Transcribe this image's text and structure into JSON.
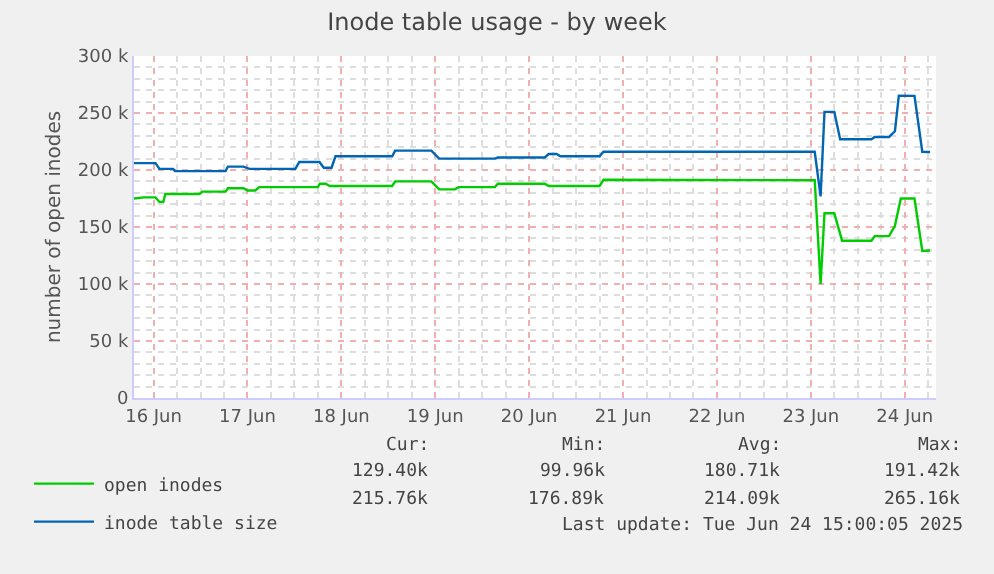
{
  "chart_data": {
    "type": "line",
    "title": "Inode table usage - by week",
    "ylabel": "number of open inodes",
    "xlim": [
      "2025-06-15T19:00",
      "2025-06-24T08:00"
    ],
    "xticks": [
      {
        "value": "2025-06-16",
        "label": "16 Jun"
      },
      {
        "value": "2025-06-17",
        "label": "17 Jun"
      },
      {
        "value": "2025-06-18",
        "label": "18 Jun"
      },
      {
        "value": "2025-06-19",
        "label": "19 Jun"
      },
      {
        "value": "2025-06-20",
        "label": "20 Jun"
      },
      {
        "value": "2025-06-21",
        "label": "21 Jun"
      },
      {
        "value": "2025-06-22",
        "label": "22 Jun"
      },
      {
        "value": "2025-06-23",
        "label": "23 Jun"
      },
      {
        "value": "2025-06-24",
        "label": "24 Jun"
      }
    ],
    "ylim": [
      0,
      300000
    ],
    "yticks": [
      0,
      {
        "value": 50000,
        "label": "50 k"
      },
      {
        "value": 100000,
        "label": "100 k"
      },
      {
        "value": 150000,
        "label": "150 k"
      },
      {
        "value": 200000,
        "label": "200 k"
      },
      {
        "value": 250000,
        "label": "250 k"
      },
      {
        "value": 300000,
        "label": "300 k"
      }
    ],
    "grid": true,
    "legend": "bottom",
    "marker": "none",
    "line_style": "solid",
    "series": [
      {
        "name": "open inodes",
        "color": "#00cc00",
        "x": [
          "2025-06-15T19:00",
          "2025-06-15T21:30",
          "2025-06-16T00:30",
          "2025-06-16T01:30",
          "2025-06-16T02:30",
          "2025-06-16T03:00",
          "2025-06-16T11:45",
          "2025-06-16T12:30",
          "2025-06-16T18:25",
          "2025-06-16T19:00",
          "2025-06-16T23:00",
          "2025-06-17T00:00",
          "2025-06-17T02:00",
          "2025-06-17T03:00",
          "2025-06-17T18:00",
          "2025-06-17T18:30",
          "2025-06-17T20:00",
          "2025-06-17T21:00",
          "2025-06-18T13:00",
          "2025-06-18T13:45",
          "2025-06-18T23:00",
          "2025-06-19T01:00",
          "2025-06-19T05:00",
          "2025-06-19T06:00",
          "2025-06-19T15:15",
          "2025-06-19T16:00",
          "2025-06-20T04:00",
          "2025-06-20T05:00",
          "2025-06-20T18:00",
          "2025-06-20T19:00",
          "2025-06-23T01:00",
          "2025-06-23T02:30",
          "2025-06-23T03:30",
          "2025-06-23T06:00",
          "2025-06-23T08:00",
          "2025-06-23T15:30",
          "2025-06-23T16:20",
          "2025-06-23T20:00",
          "2025-06-23T21:30",
          "2025-06-23T23:00",
          "2025-06-24T02:30",
          "2025-06-24T04:30",
          "2025-06-24T06:30"
        ],
        "values": [
          175000,
          176000,
          176000,
          172000,
          172000,
          179000,
          179000,
          181000,
          181000,
          184000,
          184000,
          182000,
          182000,
          185000,
          185000,
          188000,
          188000,
          186000,
          186000,
          190000,
          190000,
          183000,
          183000,
          185000,
          185000,
          188000,
          188000,
          186000,
          186000,
          191420,
          191000,
          99960,
          162000,
          162000,
          138000,
          138000,
          142000,
          142000,
          151000,
          175000,
          175000,
          129000,
          129400
        ]
      },
      {
        "name": "inode table size",
        "color": "#0066b3",
        "x": [
          "2025-06-15T19:00",
          "2025-06-16T00:30",
          "2025-06-16T01:30",
          "2025-06-16T05:00",
          "2025-06-16T05:30",
          "2025-06-16T18:25",
          "2025-06-16T19:00",
          "2025-06-16T23:00",
          "2025-06-17T00:30",
          "2025-06-17T12:15",
          "2025-06-17T13:15",
          "2025-06-17T18:25",
          "2025-06-17T19:30",
          "2025-06-17T21:30",
          "2025-06-17T22:30",
          "2025-06-18T13:00",
          "2025-06-18T13:45",
          "2025-06-18T23:00",
          "2025-06-19T01:00",
          "2025-06-19T15:15",
          "2025-06-19T16:00",
          "2025-06-20T04:00",
          "2025-06-20T05:00",
          "2025-06-20T07:00",
          "2025-06-20T08:00",
          "2025-06-20T18:00",
          "2025-06-20T19:00",
          "2025-06-23T01:00",
          "2025-06-23T02:30",
          "2025-06-23T03:30",
          "2025-06-23T06:00",
          "2025-06-23T07:30",
          "2025-06-23T15:30",
          "2025-06-23T16:20",
          "2025-06-23T20:00",
          "2025-06-23T21:30",
          "2025-06-23T22:30",
          "2025-06-24T02:30",
          "2025-06-24T04:30",
          "2025-06-24T06:30"
        ],
        "values": [
          206000,
          206000,
          201000,
          201000,
          199000,
          199000,
          203000,
          203000,
          201000,
          201000,
          207000,
          207000,
          202000,
          202000,
          212000,
          212000,
          217000,
          217000,
          210000,
          210000,
          211000,
          211000,
          214000,
          214000,
          212000,
          212000,
          216000,
          216000,
          176890,
          251000,
          251000,
          227000,
          227000,
          229000,
          229000,
          234000,
          265160,
          265000,
          216000,
          215760
        ]
      }
    ],
    "annotations": [
      "Cur:",
      "Min:",
      "Avg:",
      "Max:",
      "129.40k",
      "99.96k",
      "180.71k",
      "191.42k",
      "215.76k",
      "176.89k",
      "214.09k",
      "265.16k",
      "Last update: Tue Jun 24 15:00:05 2025"
    ]
  }
}
